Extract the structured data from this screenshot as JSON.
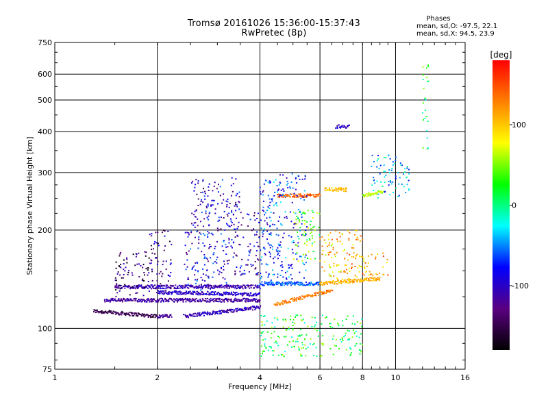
{
  "chart_data": {
    "type": "scatter",
    "title": "Tromsø 20161026 15:36:00-15:37:43",
    "subtitle": "RwPretec (8p)",
    "xlabel": "Frequency [MHz]",
    "ylabel": "Stationary phase Virtual Height [km]",
    "x_scale": "log",
    "y_scale": "log",
    "xlim": [
      1,
      16
    ],
    "ylim": [
      75,
      750
    ],
    "x_ticks": [
      1,
      2,
      4,
      6,
      8,
      10,
      16
    ],
    "x_tick_labels": [
      "1",
      "2",
      "4",
      "6",
      "8",
      "10",
      "16"
    ],
    "y_ticks": [
      75,
      100,
      200,
      300,
      400,
      500,
      600,
      750
    ],
    "y_tick_labels": [
      "75",
      "100",
      "200",
      "300",
      "400",
      "500",
      "600",
      "750"
    ],
    "grid": true,
    "colorbar": {
      "label": "[deg]",
      "range": [
        -180,
        180
      ],
      "ticks": [
        100,
        0,
        -100
      ],
      "tick_labels": [
        "100",
        "0",
        "-100"
      ],
      "colors": [
        "#000000",
        "#5a0080",
        "#0000ff",
        "#00ffff",
        "#00ff00",
        "#ffff00",
        "#ff8000",
        "#ff0000"
      ]
    },
    "phases_legend": {
      "title": "Phases",
      "line_o": "mean, sd,O: -97.5, 22.1",
      "line_x": "mean, sd,X:  94.5, 23.9"
    },
    "traces": [
      {
        "x_start": 1.3,
        "x_end": 2.0,
        "h_start": 113,
        "h_end": 109,
        "phase": -150
      },
      {
        "x_start": 2.0,
        "x_end": 2.2,
        "h_start": 109,
        "h_end": 109,
        "phase": -120
      },
      {
        "x_start": 2.4,
        "x_end": 4.0,
        "h_start": 109,
        "h_end": 116,
        "phase": -105
      },
      {
        "x_start": 1.4,
        "x_end": 4.0,
        "h_start": 122,
        "h_end": 122,
        "phase": -115
      },
      {
        "x_start": 1.5,
        "x_end": 4.0,
        "h_start": 134,
        "h_end": 134,
        "phase": -110
      },
      {
        "x_start": 2.0,
        "x_end": 4.0,
        "h_start": 129,
        "h_end": 127,
        "phase": -100
      },
      {
        "x_start": 4.0,
        "x_end": 6.0,
        "h_start": 137,
        "h_end": 137,
        "phase": -60
      },
      {
        "x_start": 4.4,
        "x_end": 6.5,
        "h_start": 118,
        "h_end": 131,
        "phase": 130
      },
      {
        "x_start": 6.0,
        "x_end": 9.0,
        "h_start": 137,
        "h_end": 142,
        "phase": 110
      },
      {
        "x_start": 4.5,
        "x_end": 6.0,
        "h_start": 255,
        "h_end": 255,
        "phase": 140
      },
      {
        "x_start": 6.2,
        "x_end": 7.2,
        "h_start": 266,
        "h_end": 266,
        "phase": 100
      },
      {
        "x_start": 8.0,
        "x_end": 9.2,
        "h_start": 255,
        "h_end": 262,
        "phase": 60
      },
      {
        "x_start": 6.7,
        "x_end": 7.3,
        "h_start": 415,
        "h_end": 415,
        "phase": -100
      }
    ],
    "clusters": [
      {
        "x_min": 1.5,
        "x_max": 1.9,
        "h_min": 125,
        "h_max": 175,
        "phase": -140
      },
      {
        "x_min": 1.9,
        "x_max": 2.2,
        "h_min": 130,
        "h_max": 200,
        "phase": -120
      },
      {
        "x_min": 2.4,
        "x_max": 3.2,
        "h_min": 130,
        "h_max": 200,
        "phase": -90
      },
      {
        "x_min": 3.2,
        "x_max": 4.0,
        "h_min": 145,
        "h_max": 230,
        "phase": -105
      },
      {
        "x_min": 2.5,
        "x_max": 3.5,
        "h_min": 200,
        "h_max": 290,
        "phase": -100
      },
      {
        "x_min": 4.0,
        "x_max": 5.5,
        "h_min": 140,
        "h_max": 300,
        "phase": -70
      },
      {
        "x_min": 5.0,
        "x_max": 6.0,
        "h_min": 160,
        "h_max": 230,
        "phase": 40
      },
      {
        "x_min": 6.0,
        "x_max": 8.0,
        "h_min": 140,
        "h_max": 200,
        "phase": 100
      },
      {
        "x_min": 7.0,
        "x_max": 9.5,
        "h_min": 145,
        "h_max": 170,
        "phase": 115
      },
      {
        "x_min": 8.5,
        "x_max": 11.0,
        "h_min": 250,
        "h_max": 340,
        "phase": -40
      },
      {
        "x_min": 12.0,
        "x_max": 12.5,
        "h_min": 350,
        "h_max": 640,
        "phase": 10
      },
      {
        "x_min": 4.0,
        "x_max": 8.0,
        "h_min": 82,
        "h_max": 110,
        "phase": 20
      }
    ]
  }
}
